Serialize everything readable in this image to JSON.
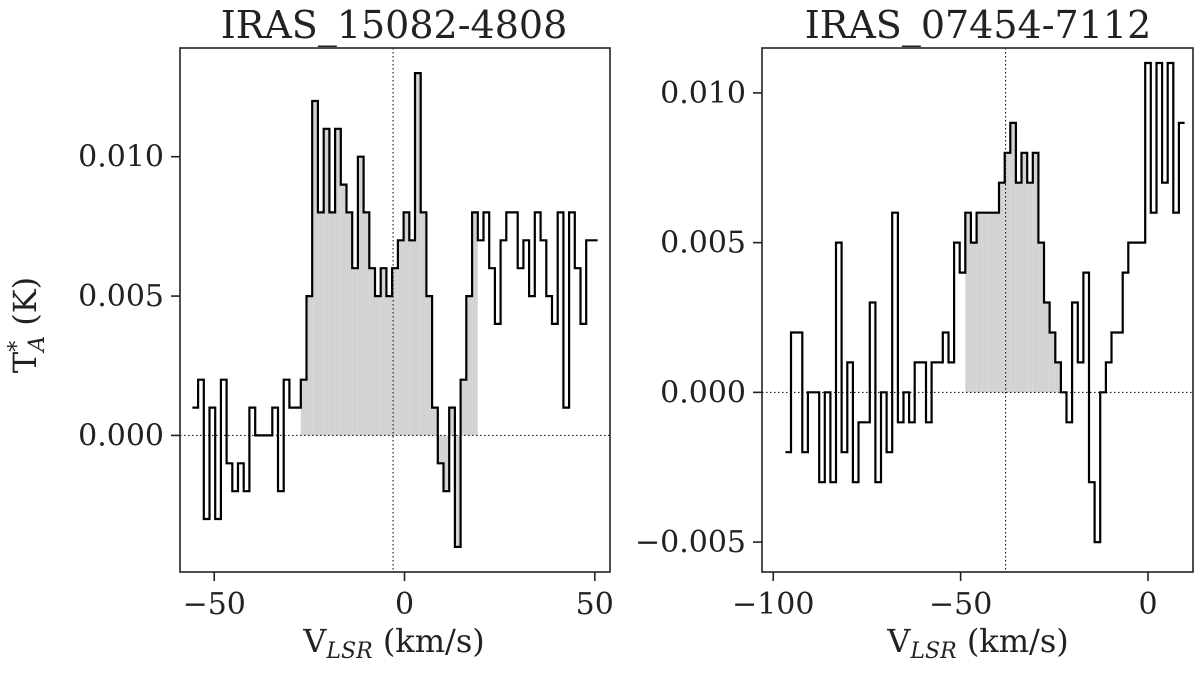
{
  "chart_data": [
    {
      "type": "line",
      "style": "step",
      "title": "IRAS_15082-4808",
      "xlabel": "V",
      "xlabel_sub": "LSR",
      "xlabel_unit": " (km/s)",
      "ylabel": "T",
      "ylabel_sup": "*",
      "ylabel_sub": "A",
      "ylabel_unit": " (K)",
      "xlim": [
        -59,
        54
      ],
      "ylim": [
        -0.0049,
        0.0139
      ],
      "xticks": [
        -50,
        0,
        50
      ],
      "xtick_labels": [
        "−50",
        "0",
        "50"
      ],
      "yticks": [
        0.0,
        0.005,
        0.01
      ],
      "ytick_labels": [
        "0.000",
        "0.005",
        "0.010"
      ],
      "vline_x": -3,
      "hline_y": 0,
      "shade_range": [
        -27,
        19
      ],
      "grid": false,
      "line_color": "#000000",
      "shade_color": "#d3d3d3",
      "x": [
        -55,
        -53.5,
        -52,
        -50.5,
        -49,
        -47.5,
        -46,
        -44.5,
        -43,
        -41.5,
        -40,
        -38.5,
        -37,
        -35.5,
        -34,
        -32.5,
        -31,
        -29.5,
        -28,
        -26.5,
        -25,
        -23.5,
        -22,
        -20.5,
        -19,
        -17.5,
        -16,
        -14.5,
        -13,
        -11.5,
        -10,
        -8.5,
        -7,
        -5.5,
        -4,
        -2.5,
        -1,
        0.5,
        2,
        3.5,
        5,
        6.5,
        8,
        9.5,
        11,
        12.5,
        14,
        15.5,
        17,
        18.5,
        20,
        21.5,
        23,
        24.5,
        26,
        27.5,
        29,
        30.5,
        32,
        33.5,
        35,
        36.5,
        38,
        39.5,
        41,
        42.5,
        44,
        45.5,
        47,
        48.5,
        50
      ],
      "y": [
        0.001,
        0.002,
        -0.003,
        0.001,
        -0.003,
        0.002,
        -0.001,
        -0.002,
        -0.001,
        -0.002,
        0.001,
        0.0,
        0.0,
        0.0,
        0.001,
        -0.002,
        0.002,
        0.001,
        0.001,
        0.002,
        0.005,
        0.012,
        0.008,
        0.011,
        0.008,
        0.011,
        0.009,
        0.008,
        0.006,
        0.01,
        0.008,
        0.006,
        0.005,
        0.006,
        0.005,
        0.006,
        0.007,
        0.008,
        0.007,
        0.013,
        0.008,
        0.005,
        0.001,
        -0.001,
        -0.002,
        0.001,
        -0.004,
        0.002,
        0.005,
        0.008,
        0.007,
        0.008,
        0.006,
        0.004,
        0.007,
        0.008,
        0.008,
        0.006,
        0.007,
        0.005,
        0.008,
        0.007,
        0.005,
        0.004,
        0.008,
        0.001,
        0.008,
        0.006,
        0.004,
        0.007,
        0.007
      ]
    },
    {
      "type": "line",
      "style": "step",
      "title": "IRAS_07454-7112",
      "xlabel": "V",
      "xlabel_sub": "LSR",
      "xlabel_unit": " (km/s)",
      "xlim": [
        -103,
        12
      ],
      "ylim": [
        -0.006,
        0.0115
      ],
      "xticks": [
        -100,
        -50,
        0
      ],
      "xtick_labels": [
        "−100",
        "−50",
        "0"
      ],
      "yticks": [
        -0.005,
        0.0,
        0.005,
        0.01
      ],
      "ytick_labels": [
        "−0.005",
        "0.000",
        "0.005",
        "0.010"
      ],
      "vline_x": -38,
      "hline_y": 0,
      "shade_range": [
        -48,
        -23
      ],
      "grid": false,
      "line_color": "#000000",
      "shade_color": "#d3d3d3",
      "x": [
        -96,
        -94.5,
        -93,
        -91.5,
        -90,
        -88.5,
        -87,
        -85.5,
        -84,
        -82.5,
        -81,
        -79.5,
        -78,
        -76.5,
        -75,
        -73.5,
        -72,
        -70.5,
        -69,
        -67.5,
        -66,
        -64.5,
        -63,
        -61.5,
        -60,
        -58.5,
        -57,
        -55.5,
        -54,
        -52.5,
        -51,
        -49.5,
        -48,
        -46.5,
        -45,
        -43.5,
        -42,
        -40.5,
        -39,
        -37.5,
        -36,
        -34.5,
        -33,
        -31.5,
        -30,
        -28.5,
        -27,
        -25.5,
        -24,
        -22.5,
        -21,
        -19.5,
        -18,
        -16.5,
        -15,
        -13.5,
        -12,
        -10.5,
        -9,
        -7.5,
        -6,
        -4.5,
        -3,
        -1.5,
        0,
        1.5,
        3,
        4.5,
        6,
        7.5,
        9
      ],
      "y": [
        -0.002,
        0.002,
        0.002,
        -0.002,
        0.0,
        0.0,
        -0.003,
        0.0,
        -0.003,
        0.005,
        -0.002,
        0.001,
        -0.003,
        -0.001,
        -0.001,
        0.003,
        -0.003,
        0.0,
        -0.002,
        0.006,
        -0.001,
        0.0,
        -0.001,
        0.001,
        0.001,
        -0.001,
        0.001,
        0.001,
        0.002,
        0.001,
        0.005,
        0.004,
        0.006,
        0.005,
        0.006,
        0.006,
        0.006,
        0.006,
        0.007,
        0.008,
        0.009,
        0.007,
        0.008,
        0.007,
        0.008,
        0.005,
        0.003,
        0.002,
        0.001,
        0.0,
        -0.001,
        0.003,
        0.001,
        0.004,
        -0.003,
        -0.005,
        0.0,
        0.001,
        0.002,
        0.002,
        0.004,
        0.005,
        0.005,
        0.005,
        0.011,
        0.006,
        0.011,
        0.007,
        0.011,
        0.006,
        0.009
      ]
    }
  ]
}
